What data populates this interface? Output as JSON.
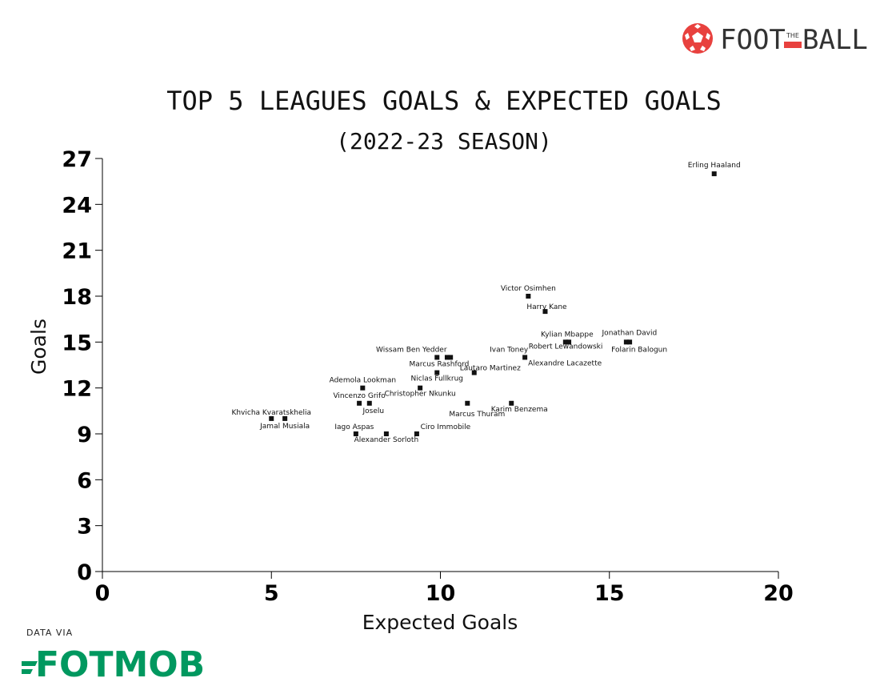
{
  "branding": {
    "logo_text_left": "FOOT",
    "logo_text_mid": "THE",
    "logo_text_right": "BALL",
    "data_via": "DATA VIA",
    "source_logo": "FOTMOB",
    "brand_red": "#e8413e",
    "source_green": "#00985f"
  },
  "chart_data": {
    "type": "scatter",
    "title": "TOP 5 LEAGUES GOALS & EXPECTED GOALS",
    "subtitle": "(2022-23 SEASON)",
    "xlabel": "Expected Goals",
    "ylabel": "Goals",
    "xlim": [
      0,
      20
    ],
    "ylim": [
      0,
      27
    ],
    "xticks": [
      0,
      5,
      10,
      15,
      20
    ],
    "yticks": [
      0,
      3,
      6,
      9,
      12,
      15,
      18,
      21,
      24,
      27
    ],
    "grid": false,
    "highlight_color": "#e8141b",
    "points": [
      {
        "label": "Erling Haaland",
        "x": 18.1,
        "y": 26
      },
      {
        "label": "Victor Osimhen",
        "x": 12.6,
        "y": 18,
        "highlight": true
      },
      {
        "label": "Harry Kane",
        "x": 13.1,
        "y": 17
      },
      {
        "label": "Kylian Mbappe",
        "x": 13.7,
        "y": 15
      },
      {
        "label": "Robert Lewandowski",
        "x": 13.8,
        "y": 15
      },
      {
        "label": "Jonathan David",
        "x": 15.5,
        "y": 15
      },
      {
        "label": "Folarin Balogun",
        "x": 15.6,
        "y": 15
      },
      {
        "label": "Wissam Ben Yedder",
        "x": 9.9,
        "y": 14
      },
      {
        "label": "Ivan Toney",
        "x": 10.3,
        "y": 14
      },
      {
        "label": "Marcus Rashford",
        "x": 10.2,
        "y": 14
      },
      {
        "label": "Alexandre Lacazette",
        "x": 12.5,
        "y": 14
      },
      {
        "label": "Lautaro Martinez",
        "x": 11.0,
        "y": 13
      },
      {
        "label": "Niclas Fullkrug",
        "x": 9.9,
        "y": 13
      },
      {
        "label": "Ademola Lookman",
        "x": 7.7,
        "y": 12
      },
      {
        "label": "Christopher Nkunku",
        "x": 9.4,
        "y": 12
      },
      {
        "label": "Vincenzo Grifo",
        "x": 7.6,
        "y": 11
      },
      {
        "label": "Joselu",
        "x": 7.9,
        "y": 11
      },
      {
        "label": "Marcus Thuram",
        "x": 10.8,
        "y": 11
      },
      {
        "label": "Karim Benzema",
        "x": 12.1,
        "y": 11
      },
      {
        "label": "Khvicha Kvaratskhelia",
        "x": 5.0,
        "y": 10
      },
      {
        "label": "Jamal Musiala",
        "x": 5.4,
        "y": 10
      },
      {
        "label": "Iago Aspas",
        "x": 7.5,
        "y": 9
      },
      {
        "label": "Ciro Immobile",
        "x": 9.3,
        "y": 9
      },
      {
        "label": "Alexander Sorloth",
        "x": 8.4,
        "y": 9
      }
    ]
  }
}
